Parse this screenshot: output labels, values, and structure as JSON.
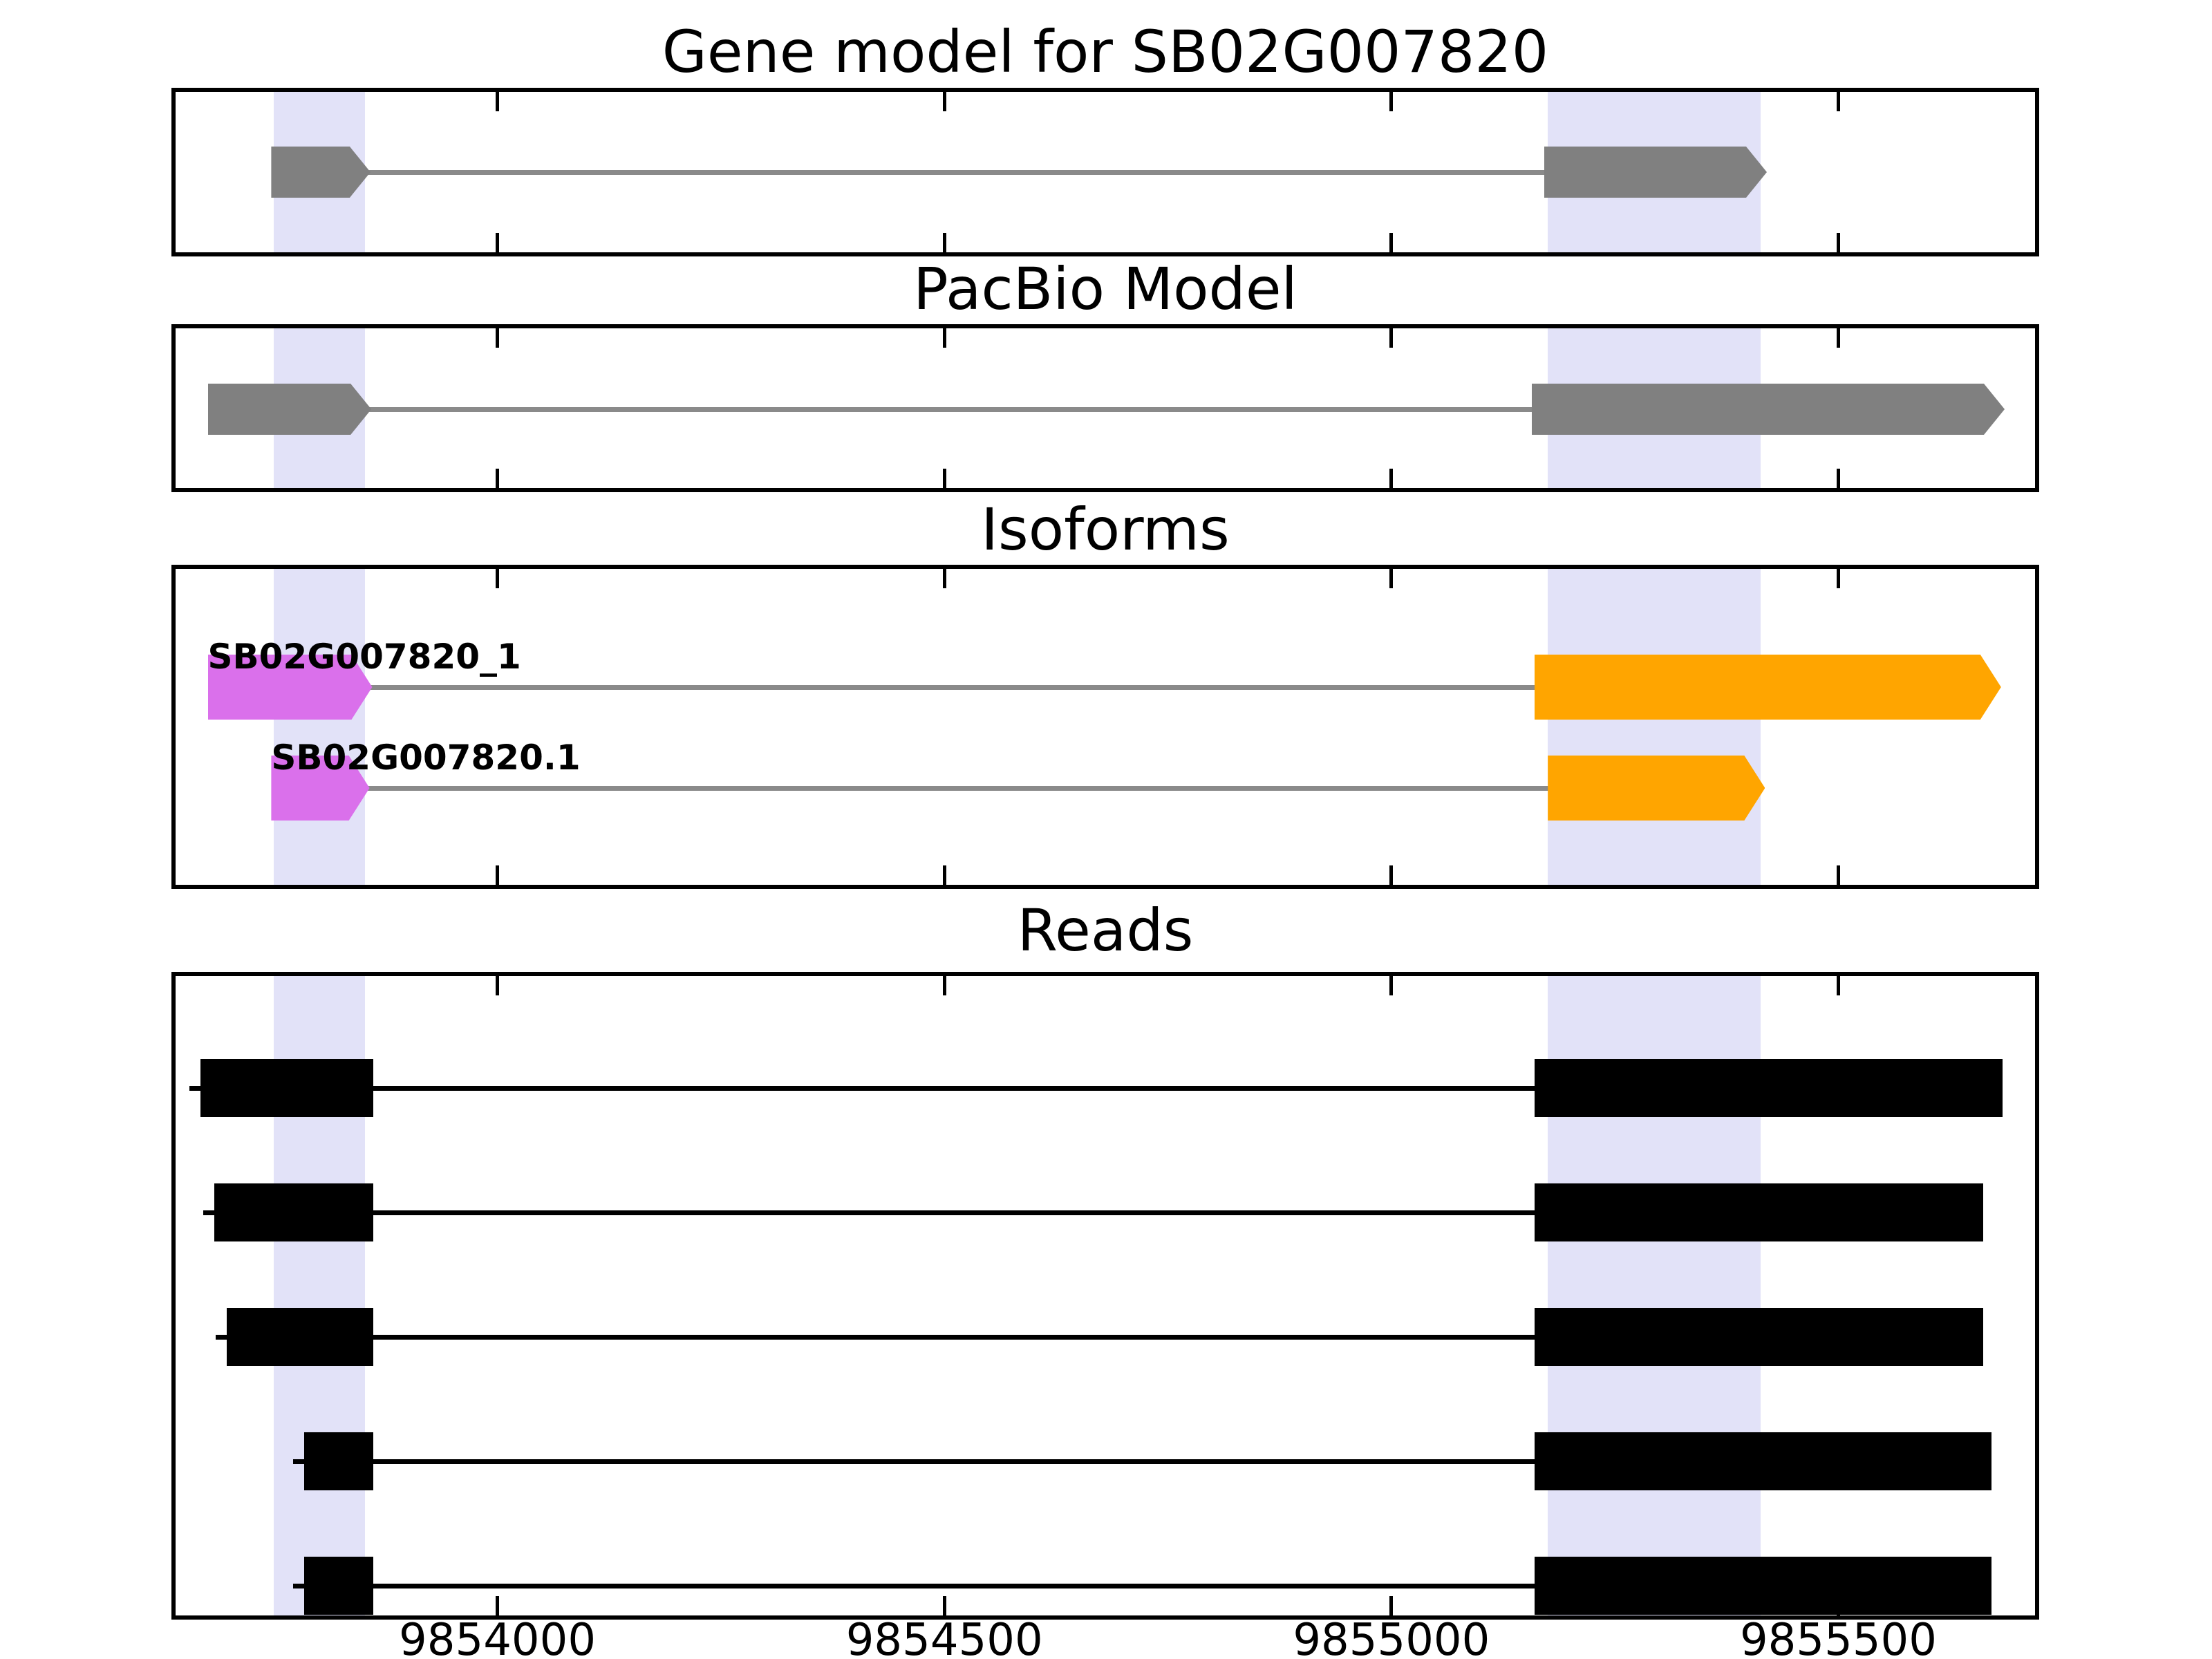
{
  "chart_data": {
    "type": "genomic-track-plot",
    "title": "Gene model for SB02G007820",
    "x_axis": {
      "min": 9853640,
      "max": 9855720,
      "tick_values": [
        9854000,
        9854500,
        9855000,
        9855500
      ],
      "tick_labels": [
        "9854000",
        "9854500",
        "9855000",
        "9855500"
      ],
      "ticks_inward": true
    },
    "highlight_regions": [
      {
        "start": 9853750,
        "end": 9853852
      },
      {
        "start": 9855175,
        "end": 9855413
      }
    ],
    "colors": {
      "gray": "#808080",
      "intron_gray": "#8A8A8A",
      "violet": "#DA70EB",
      "orange": "#FFA500",
      "black": "#000000",
      "highlight": "#E2E2F8",
      "spine": "#000000"
    },
    "panels": [
      {
        "id": "gene-model",
        "title": "Gene model for SB02G007820",
        "tracks": [
          {
            "name": "gene-model-transcript",
            "arrow": true,
            "read": false,
            "line_color": "intron_gray",
            "exons": [
              {
                "start": 9853747,
                "end": 9853858,
                "color": "gray"
              },
              {
                "start": 9855171,
                "end": 9855420,
                "color": "gray"
              }
            ]
          }
        ]
      },
      {
        "id": "pacbio-model",
        "title": "PacBio Model",
        "tracks": [
          {
            "name": "pacbio-transcript",
            "arrow": true,
            "read": false,
            "line_color": "intron_gray",
            "exons": [
              {
                "start": 9853676,
                "end": 9853859,
                "color": "gray"
              },
              {
                "start": 9855157,
                "end": 9855686,
                "color": "gray"
              }
            ]
          }
        ]
      },
      {
        "id": "isoforms",
        "title": "Isoforms",
        "tracks": [
          {
            "name": "SB02G007820_1",
            "label": "SB02G007820_1",
            "arrow": true,
            "read": false,
            "line_color": "intron_gray",
            "exons": [
              {
                "start": 9853676,
                "end": 9853860,
                "color": "violet"
              },
              {
                "start": 9855160,
                "end": 9855682,
                "color": "orange"
              }
            ]
          },
          {
            "name": "SB02G007820.1",
            "label": "SB02G007820.1",
            "arrow": true,
            "read": false,
            "line_color": "intron_gray",
            "exons": [
              {
                "start": 9853747,
                "end": 9853857,
                "color": "violet"
              },
              {
                "start": 9855175,
                "end": 9855418,
                "color": "orange"
              }
            ]
          }
        ]
      },
      {
        "id": "reads",
        "title": "Reads",
        "tracks": [
          {
            "name": "read-1",
            "arrow": false,
            "read": true,
            "line_color": "black",
            "exons": [
              {
                "start": 9853668,
                "end": 9853861,
                "color": "black"
              },
              {
                "start": 9855160,
                "end": 9855684,
                "color": "black"
              }
            ]
          },
          {
            "name": "read-2",
            "arrow": false,
            "read": true,
            "line_color": "black",
            "exons": [
              {
                "start": 9853683,
                "end": 9853861,
                "color": "black"
              },
              {
                "start": 9855160,
                "end": 9855662,
                "color": "black"
              }
            ]
          },
          {
            "name": "read-3",
            "arrow": false,
            "read": true,
            "line_color": "black",
            "exons": [
              {
                "start": 9853697,
                "end": 9853861,
                "color": "black"
              },
              {
                "start": 9855160,
                "end": 9855662,
                "color": "black"
              }
            ]
          },
          {
            "name": "read-4",
            "arrow": false,
            "read": true,
            "line_color": "black",
            "exons": [
              {
                "start": 9853784,
                "end": 9853861,
                "color": "black"
              },
              {
                "start": 9855160,
                "end": 9855671,
                "color": "black"
              }
            ]
          },
          {
            "name": "read-5",
            "arrow": false,
            "read": true,
            "line_color": "black",
            "exons": [
              {
                "start": 9853784,
                "end": 9853861,
                "color": "black"
              },
              {
                "start": 9855160,
                "end": 9855671,
                "color": "black"
              }
            ]
          }
        ]
      }
    ]
  }
}
